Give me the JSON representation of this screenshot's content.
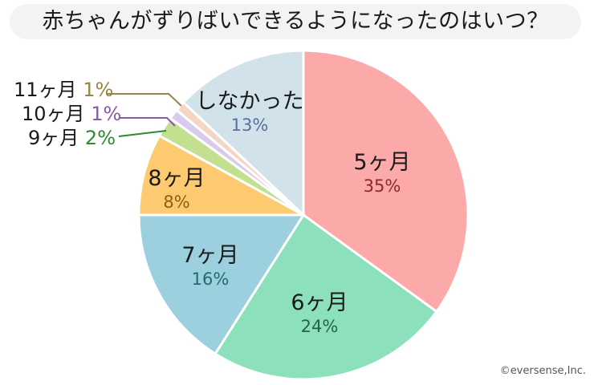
{
  "title": "赤ちゃんがずりばいできるようになったのはいつ？",
  "copyright": "©eversense,Inc.",
  "chart_data": {
    "type": "pie",
    "title": "赤ちゃんがずりばいできるようになったのはいつ？",
    "start_angle": "12 o'clock",
    "direction": "clockwise",
    "categories": [
      "5ヶ月",
      "6ヶ月",
      "7ヶ月",
      "8ヶ月",
      "9ヶ月",
      "10ヶ月",
      "11ヶ月",
      "しなかった"
    ],
    "values": [
      35,
      24,
      16,
      8,
      2,
      1,
      1,
      13
    ],
    "unit": "%",
    "colors": [
      "#fca9aa",
      "#8ce0bb",
      "#9cd0de",
      "#fdca6f",
      "#c2e08f",
      "#d8cbeb",
      "#f5d6c3",
      "#d2e2ea"
    ],
    "label_colors": [
      "#8b2a2e",
      "#22653f",
      "#226a70",
      "#8f5e16",
      "#2e8a2c",
      "#8a5aa6",
      "#9a8346",
      "#5a6e9e"
    ],
    "legend": "none (direct labels; small slices with leader lines on left)"
  },
  "labels": {
    "m5": {
      "name": "5ヶ月",
      "pct": "35%"
    },
    "m6": {
      "name": "6ヶ月",
      "pct": "24%"
    },
    "m7": {
      "name": "7ヶ月",
      "pct": "16%"
    },
    "m8": {
      "name": "8ヶ月",
      "pct": "8%"
    },
    "m9": {
      "name": "9ヶ月",
      "pct": "2%"
    },
    "m10": {
      "name": "10ヶ月",
      "pct": "1%"
    },
    "m11": {
      "name": "11ヶ月",
      "pct": "1%"
    },
    "none": {
      "name": "しなかった",
      "pct": "13%"
    }
  }
}
